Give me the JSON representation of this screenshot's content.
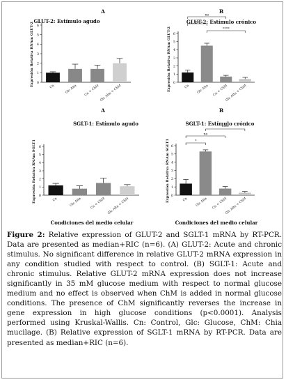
{
  "figure": {
    "caption_label": "Figure 2:",
    "caption_text": " Relative expression of GLUT-2 and SGLT-1 mRNA by RT-PCR. Data are presented as median+RIC (n=6). (A) GLUT-2: Acute and chronic stimulus. No significant difference in relative GLUT-2 mRNA expression in any condition studied with respect to control. (B) SGLT-1: Acute and chronic stimulus. Relative GLUT-2 mRNA expression does not increase significantly in 35 mM glucose medium with respect to normal glucose medium and no effect is observed when ChM is added in normal glucose conditions. The presence of ChM significantly reverses the increase in gene expression in high glucose conditions (p<0.0001). Analysis performed using Kruskal-Wallis. Cn: Control, Glc: Glucose, ChM: Chia mucilage. (B) Relative expression of SGLT-1 mRNA by RT-PCR. Data are presented as median+RIC (n=6).",
    "xlabel_bottom": "Condiciones del medio celular"
  },
  "colors": {
    "bar_fill": "#ffffff",
    "bar_stroke": "#222222",
    "error": "#222222"
  },
  "chart_data": [
    {
      "type": "bar",
      "panel_letter": "A",
      "title": "GLUT-2: Estímulo agudo",
      "ylabel": "Expresión Relativa RNAm GLUT-2",
      "categories": [
        "Cn",
        "Glc Alta",
        "Cn + ChM",
        "Glc Alta + ChM"
      ],
      "values": [
        1.0,
        1.4,
        1.4,
        2.0
      ],
      "errors": [
        0.1,
        0.5,
        0.4,
        0.5
      ],
      "yticks": [
        0,
        1,
        2,
        3,
        4,
        5,
        6
      ],
      "ylim": [
        0,
        6
      ],
      "fills": [
        "#111111",
        "#888888",
        "#888888",
        "#cfcfcf"
      ],
      "brackets": []
    },
    {
      "type": "bar",
      "panel_letter": "B",
      "title": "GLUT-2: Estímulo crónico",
      "ylabel": "Expresión Relativa RNAm GLUT-2",
      "categories": [
        "Cn",
        "Glc Alta",
        "Cn + ChM",
        "Glc Alta + ChM"
      ],
      "values": [
        1.2,
        4.5,
        0.7,
        0.4
      ],
      "errors": [
        0.3,
        0.3,
        0.15,
        0.2
      ],
      "yticks": [
        0,
        1,
        2,
        3,
        4,
        5,
        6
      ],
      "ylim": [
        0,
        6
      ],
      "fills": [
        "#111111",
        "#8a8a8a",
        "#8a8a8a",
        "#c4c4c4"
      ],
      "brackets": [
        {
          "from": 0,
          "to": 1,
          "label": "ns",
          "level": 1
        },
        {
          "from": 0,
          "to": 2,
          "label": "ns",
          "level": 2
        },
        {
          "from": 1,
          "to": 3,
          "label": "****",
          "level": 0
        }
      ]
    },
    {
      "type": "bar",
      "panel_letter": "A",
      "title": "SGLT-1: Estímulo agudo",
      "ylabel": "Expresión Relativa RNAm SGLT1",
      "categories": [
        "Cn",
        "Glc Alta",
        "Cn + ChM",
        "Glc Alta + ChM"
      ],
      "values": [
        1.2,
        0.8,
        1.5,
        1.1
      ],
      "errors": [
        0.25,
        0.35,
        0.6,
        0.2
      ],
      "yticks": [
        0,
        1,
        2,
        3,
        4,
        5,
        6
      ],
      "ylim": [
        0,
        6
      ],
      "fills": [
        "#111111",
        "#888888",
        "#888888",
        "#cfcfcf"
      ],
      "brackets": []
    },
    {
      "type": "bar",
      "panel_letter": "B",
      "title": "SGLT-1: Estímulo crónico",
      "ylabel": "Expresión Relativa RNAm SGLT1",
      "categories": [
        "Cn",
        "Glc Alta",
        "Cn + ChM",
        "Glc Alta + ChM"
      ],
      "values": [
        1.4,
        5.3,
        0.8,
        0.3
      ],
      "errors": [
        0.5,
        0.2,
        0.25,
        0.15
      ],
      "yticks": [
        0,
        1,
        2,
        3,
        4,
        5,
        6
      ],
      "ylim": [
        0,
        6
      ],
      "fills": [
        "#111111",
        "#8a8a8a",
        "#8a8a8a",
        "#c4c4c4"
      ],
      "brackets": [
        {
          "from": 0,
          "to": 1,
          "label": "*",
          "level": 0
        },
        {
          "from": 0,
          "to": 2,
          "label": "ns",
          "level": 1
        },
        {
          "from": 1,
          "to": 3,
          "label": "****",
          "level": 2
        }
      ]
    }
  ]
}
